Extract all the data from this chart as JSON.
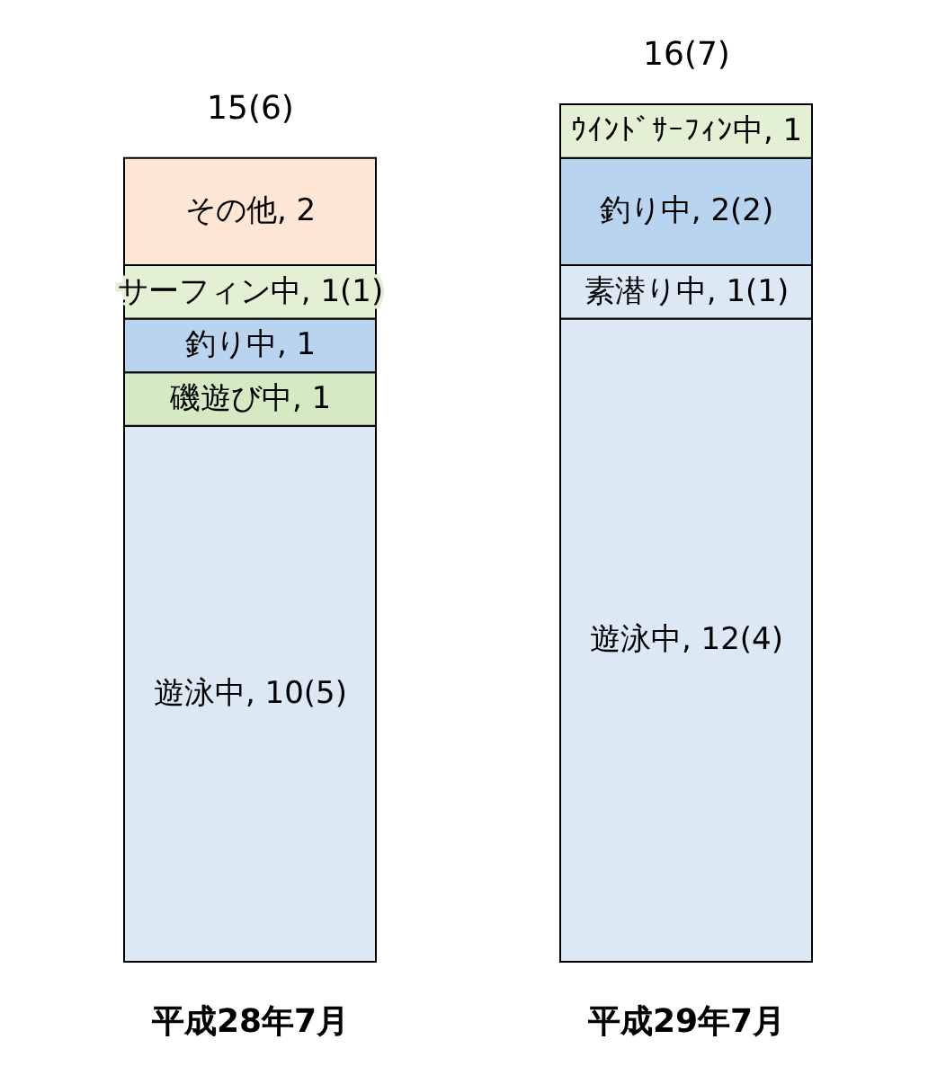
{
  "chart_data": {
    "type": "bar",
    "stacked": true,
    "categories": [
      "平成28年7月",
      "平成29年7月"
    ],
    "series": [
      {
        "color": "#dce9f5",
        "values": [
          10,
          12
        ],
        "value_labels": [
          "遊泳中, 10(5)",
          "遊泳中, 12(4)"
        ]
      },
      {
        "color": "#d5e9c3",
        "values": [
          1,
          null
        ],
        "value_labels": [
          "磯遊び中, 1",
          null
        ]
      },
      {
        "color": "#dce9f5",
        "values": [
          null,
          1
        ],
        "value_labels": [
          null,
          "素潜り中, 1(1)"
        ]
      },
      {
        "color": "#b9d4ef",
        "values": [
          1,
          2
        ],
        "value_labels": [
          "釣り中, 1",
          "釣り中, 2(2)"
        ]
      },
      {
        "color": "#e3f0d3",
        "values": [
          1,
          null
        ],
        "value_labels": [
          "サーフィン中, 1(1)",
          null
        ]
      },
      {
        "color": "#e3f0d3",
        "values": [
          null,
          1
        ],
        "value_labels": [
          null,
          "ｳｲﾝﾄﾞｻｰﾌｨﾝ中, 1"
        ]
      },
      {
        "color": "#fde6d4",
        "values": [
          2,
          null
        ],
        "value_labels": [
          "その他, 2",
          null
        ]
      }
    ],
    "totals": [
      "15(6)",
      "16(7)"
    ]
  }
}
